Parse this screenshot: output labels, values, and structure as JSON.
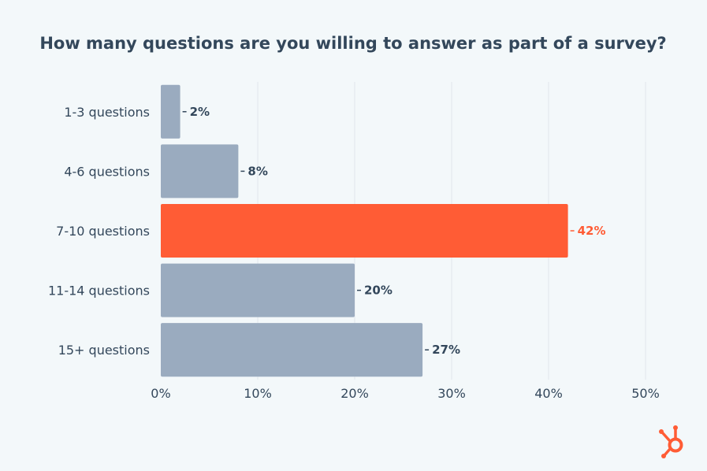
{
  "chart_data": {
    "type": "bar",
    "orientation": "horizontal",
    "title": "How many questions are you willing to answer as part of a survey?",
    "categories": [
      "1-3 questions",
      "4-6 questions",
      "7-10 questions",
      "11-14 questions",
      "15+ questions"
    ],
    "values": [
      2,
      8,
      42,
      20,
      27
    ],
    "value_labels": [
      "2%",
      "8%",
      "42%",
      "20%",
      "27%"
    ],
    "highlight_index": 2,
    "xlim": [
      0,
      50
    ],
    "xticks": [
      0,
      10,
      20,
      30,
      40,
      50
    ],
    "xtick_labels": [
      "0%",
      "10%",
      "20%",
      "30%",
      "40%",
      "50%"
    ],
    "grid": true,
    "colors": {
      "bar": "#9aabbf",
      "highlight": "#ff5c35",
      "text": "#33475b",
      "grid": "#e1e6ec",
      "background": "#f3f8fa"
    }
  },
  "logo": {
    "icon": "hubspot-sprocket-icon",
    "color": "#ff5c35"
  }
}
